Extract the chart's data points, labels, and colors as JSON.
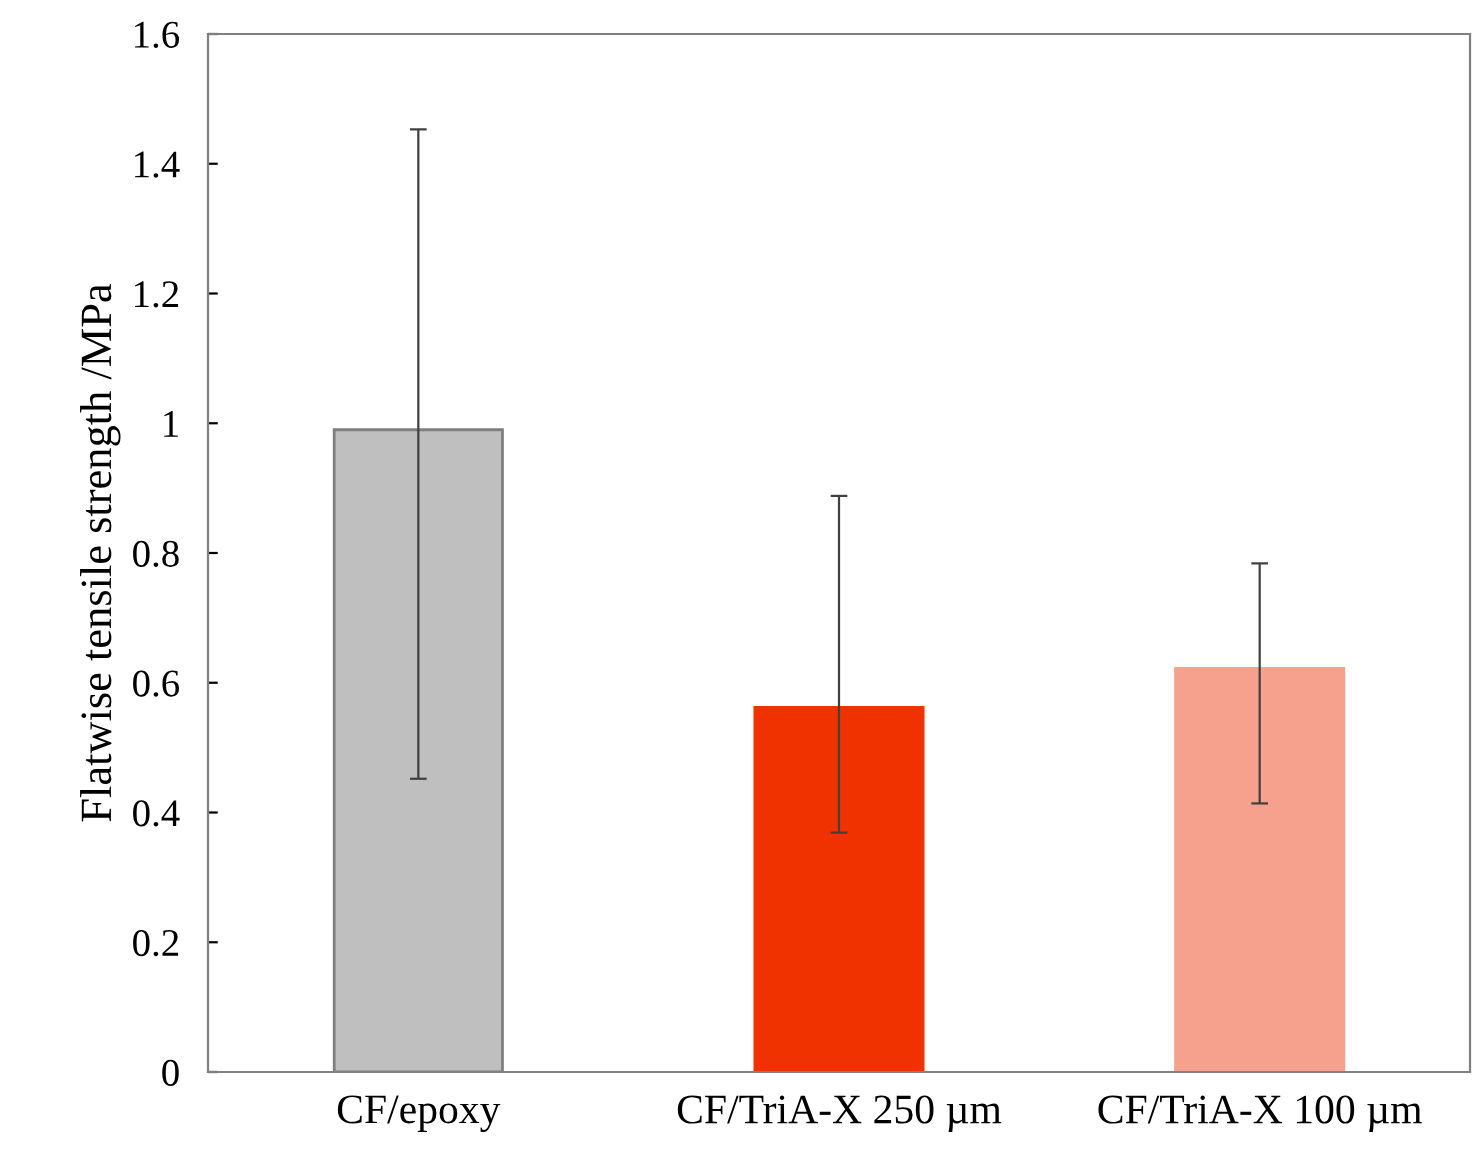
{
  "chart_data": {
    "type": "bar",
    "ylabel": "Flatwise tensile strength /MPa",
    "categories": [
      "CF/epoxy",
      "CF/TriA-X 250 µm",
      "CF/TriA-X 100 µm"
    ],
    "values": [
      0.99,
      0.562,
      0.622
    ],
    "errors": [
      [
        0.452,
        1.453
      ],
      [
        0.369,
        0.888
      ],
      [
        0.414,
        0.784
      ]
    ],
    "colors": [
      "#bfbfbf",
      "#f03200",
      "#f6a08e"
    ],
    "ylim": [
      0,
      1.6
    ],
    "yticks": [
      0,
      0.2,
      0.4,
      0.6,
      0.8,
      1,
      1.2,
      1.4,
      1.6
    ],
    "grid": false
  }
}
